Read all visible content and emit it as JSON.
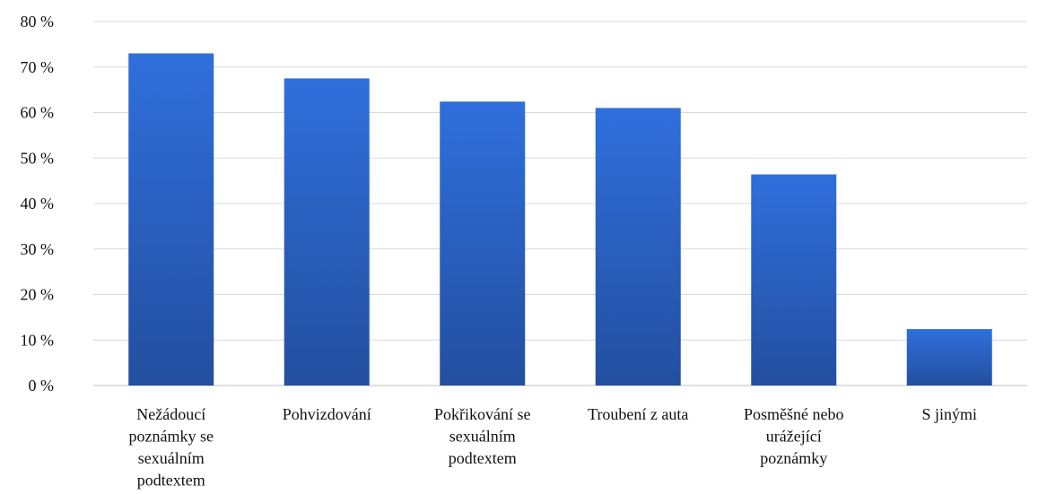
{
  "chart_data": {
    "type": "bar",
    "title": "",
    "xlabel": "",
    "ylabel": "",
    "ylim": [
      0,
      80
    ],
    "ytick_step": 10,
    "ytick_suffix": " %",
    "grid": true,
    "legend": "none",
    "categories": [
      "Nežádoucí poznámky se sexuálním podtextem",
      "Pohvizdování",
      "Pokřikování se sexuálním podtextem",
      "Troubení z auta",
      "Posměšné nebo urážející poznámky",
      "S jinými"
    ],
    "category_lines": [
      [
        "Nežádoucí",
        "poznámky se",
        "sexuálním",
        "podtextem"
      ],
      [
        "Pohvizdování"
      ],
      [
        "Pokřikování se",
        "sexuálním",
        "podtextem"
      ],
      [
        "Troubení z auta"
      ],
      [
        "Posměšné nebo",
        "urážející",
        "poznámky"
      ],
      [
        "S jinými"
      ]
    ],
    "values": [
      73,
      67.5,
      62.4,
      61,
      46.4,
      12.4
    ],
    "colors": {
      "bar_top": "#2f6fdc",
      "bar_bottom": "#234f9f",
      "grid": "#d9d9d9"
    }
  }
}
